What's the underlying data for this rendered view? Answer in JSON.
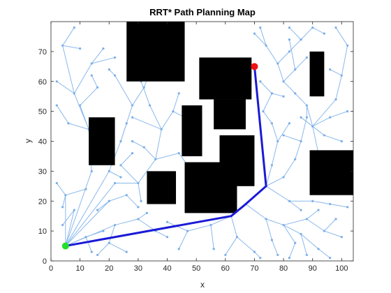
{
  "chart_data": {
    "type": "scatter",
    "title": "RRT* Path Planning Map",
    "xlabel": "x",
    "ylabel": "y",
    "xlim": [
      0,
      104
    ],
    "ylim": [
      0,
      80
    ],
    "xticks": [
      0,
      10,
      20,
      30,
      40,
      50,
      60,
      70,
      80,
      90,
      100
    ],
    "yticks": [
      0,
      10,
      20,
      30,
      40,
      50,
      60,
      70
    ],
    "grid": false,
    "legend": "none",
    "obstacles": [
      {
        "x0": 26,
        "x1": 46,
        "y0": 60,
        "y1": 80
      },
      {
        "x0": 45,
        "x1": 46,
        "y0": 68,
        "y1": 80
      },
      {
        "x0": 51,
        "x1": 69,
        "y0": 54,
        "y1": 68
      },
      {
        "x0": 56,
        "x1": 67,
        "y0": 44,
        "y1": 54
      },
      {
        "x0": 45,
        "x1": 52,
        "y0": 35,
        "y1": 52
      },
      {
        "x0": 58,
        "x1": 70,
        "y0": 25,
        "y1": 42
      },
      {
        "x0": 46,
        "x1": 64,
        "y0": 16,
        "y1": 33
      },
      {
        "x0": 33,
        "x1": 43,
        "y0": 19,
        "y1": 30
      },
      {
        "x0": 13,
        "x1": 22,
        "y0": 32,
        "y1": 48
      },
      {
        "x0": 89,
        "x1": 94,
        "y0": 55,
        "y1": 70
      },
      {
        "x0": 89,
        "x1": 104,
        "y0": 22,
        "y1": 37
      }
    ],
    "path": {
      "x": [
        5,
        62,
        67,
        74,
        70
      ],
      "y": [
        5,
        15,
        19,
        25,
        65
      ]
    },
    "start": {
      "x": 5,
      "y": 5
    },
    "goal": {
      "x": 70,
      "y": 65
    },
    "tree_edges": [
      [
        [
          5,
          5
        ],
        [
          14,
          30
        ]
      ],
      [
        [
          14,
          30
        ],
        [
          13,
          44
        ]
      ],
      [
        [
          13,
          44
        ],
        [
          8,
          56
        ]
      ],
      [
        [
          8,
          56
        ],
        [
          2,
          60
        ]
      ],
      [
        [
          8,
          56
        ],
        [
          4,
          72
        ]
      ],
      [
        [
          4,
          72
        ],
        [
          8,
          78
        ]
      ],
      [
        [
          4,
          72
        ],
        [
          10,
          71
        ]
      ],
      [
        [
          8,
          56
        ],
        [
          14,
          66
        ]
      ],
      [
        [
          14,
          66
        ],
        [
          18,
          71
        ]
      ],
      [
        [
          14,
          66
        ],
        [
          22,
          68
        ]
      ],
      [
        [
          13,
          44
        ],
        [
          6,
          46
        ]
      ],
      [
        [
          6,
          46
        ],
        [
          2,
          52
        ]
      ],
      [
        [
          13,
          44
        ],
        [
          10,
          52
        ]
      ],
      [
        [
          10,
          52
        ],
        [
          16,
          58
        ]
      ],
      [
        [
          16,
          58
        ],
        [
          14,
          62
        ]
      ],
      [
        [
          5,
          5
        ],
        [
          5,
          22
        ]
      ],
      [
        [
          5,
          22
        ],
        [
          2,
          26
        ]
      ],
      [
        [
          5,
          22
        ],
        [
          4,
          18
        ]
      ],
      [
        [
          5,
          22
        ],
        [
          12,
          24
        ]
      ],
      [
        [
          5,
          5
        ],
        [
          8,
          17
        ]
      ],
      [
        [
          8,
          17
        ],
        [
          4,
          12
        ]
      ],
      [
        [
          5,
          5
        ],
        [
          20,
          30
        ]
      ],
      [
        [
          20,
          30
        ],
        [
          24,
          40
        ]
      ],
      [
        [
          24,
          40
        ],
        [
          28,
          52
        ]
      ],
      [
        [
          28,
          52
        ],
        [
          22,
          62
        ]
      ],
      [
        [
          22,
          62
        ],
        [
          20,
          64
        ]
      ],
      [
        [
          28,
          52
        ],
        [
          32,
          58
        ]
      ],
      [
        [
          32,
          58
        ],
        [
          34,
          63
        ]
      ],
      [
        [
          24,
          40
        ],
        [
          26,
          46
        ]
      ],
      [
        [
          20,
          30
        ],
        [
          24,
          28
        ]
      ],
      [
        [
          5,
          5
        ],
        [
          22,
          26
        ]
      ],
      [
        [
          22,
          26
        ],
        [
          30,
          26
        ]
      ],
      [
        [
          30,
          26
        ],
        [
          36,
          34
        ]
      ],
      [
        [
          36,
          34
        ],
        [
          38,
          44
        ]
      ],
      [
        [
          38,
          44
        ],
        [
          34,
          52
        ]
      ],
      [
        [
          34,
          52
        ],
        [
          31,
          60
        ]
      ],
      [
        [
          38,
          44
        ],
        [
          42,
          50
        ]
      ],
      [
        [
          42,
          50
        ],
        [
          44,
          56
        ]
      ],
      [
        [
          42,
          50
        ],
        [
          46,
          48
        ]
      ],
      [
        [
          38,
          44
        ],
        [
          28,
          48
        ]
      ],
      [
        [
          36,
          34
        ],
        [
          44,
          36
        ]
      ],
      [
        [
          44,
          36
        ],
        [
          47,
          32
        ]
      ],
      [
        [
          30,
          26
        ],
        [
          31,
          20
        ]
      ],
      [
        [
          5,
          5
        ],
        [
          20,
          20
        ]
      ],
      [
        [
          20,
          20
        ],
        [
          16,
          17
        ]
      ],
      [
        [
          20,
          20
        ],
        [
          26,
          22
        ]
      ],
      [
        [
          26,
          22
        ],
        [
          30,
          18
        ]
      ],
      [
        [
          5,
          5
        ],
        [
          22,
          12
        ]
      ],
      [
        [
          22,
          12
        ],
        [
          30,
          14
        ]
      ],
      [
        [
          30,
          14
        ],
        [
          36,
          10
        ]
      ],
      [
        [
          36,
          10
        ],
        [
          40,
          8
        ]
      ],
      [
        [
          30,
          14
        ],
        [
          33,
          16
        ]
      ],
      [
        [
          22,
          12
        ],
        [
          20,
          6
        ]
      ],
      [
        [
          20,
          6
        ],
        [
          16,
          2
        ]
      ],
      [
        [
          20,
          6
        ],
        [
          26,
          3
        ]
      ],
      [
        [
          5,
          5
        ],
        [
          12,
          8
        ]
      ],
      [
        [
          12,
          8
        ],
        [
          14,
          3
        ]
      ],
      [
        [
          12,
          8
        ],
        [
          18,
          10
        ]
      ],
      [
        [
          62,
          15
        ],
        [
          55,
          12
        ]
      ],
      [
        [
          55,
          12
        ],
        [
          47,
          10
        ]
      ],
      [
        [
          47,
          10
        ],
        [
          44,
          4
        ]
      ],
      [
        [
          47,
          10
        ],
        [
          40,
          13
        ]
      ],
      [
        [
          55,
          12
        ],
        [
          56,
          4
        ]
      ],
      [
        [
          62,
          15
        ],
        [
          64,
          8
        ]
      ],
      [
        [
          64,
          8
        ],
        [
          60,
          2
        ]
      ],
      [
        [
          64,
          8
        ],
        [
          70,
          3
        ]
      ],
      [
        [
          70,
          3
        ],
        [
          72,
          1
        ]
      ],
      [
        [
          67,
          19
        ],
        [
          74,
          14
        ]
      ],
      [
        [
          74,
          14
        ],
        [
          80,
          12
        ]
      ],
      [
        [
          80,
          12
        ],
        [
          86,
          9
        ]
      ],
      [
        [
          86,
          9
        ],
        [
          88,
          2
        ]
      ],
      [
        [
          86,
          9
        ],
        [
          92,
          4
        ]
      ],
      [
        [
          92,
          4
        ],
        [
          96,
          1
        ]
      ],
      [
        [
          80,
          12
        ],
        [
          84,
          6
        ]
      ],
      [
        [
          84,
          6
        ],
        [
          82,
          1
        ]
      ],
      [
        [
          74,
          14
        ],
        [
          76,
          7
        ]
      ],
      [
        [
          76,
          7
        ],
        [
          78,
          2
        ]
      ],
      [
        [
          80,
          12
        ],
        [
          88,
          14
        ]
      ],
      [
        [
          88,
          14
        ],
        [
          94,
          10
        ]
      ],
      [
        [
          94,
          10
        ],
        [
          100,
          8
        ]
      ],
      [
        [
          94,
          10
        ],
        [
          98,
          14
        ]
      ],
      [
        [
          88,
          14
        ],
        [
          92,
          17
        ]
      ],
      [
        [
          74,
          25
        ],
        [
          82,
          20
        ]
      ],
      [
        [
          82,
          20
        ],
        [
          86,
          17
        ]
      ],
      [
        [
          82,
          20
        ],
        [
          90,
          20
        ]
      ],
      [
        [
          90,
          20
        ],
        [
          96,
          19
        ]
      ],
      [
        [
          96,
          19
        ],
        [
          102,
          18
        ]
      ],
      [
        [
          74,
          25
        ],
        [
          80,
          28
        ]
      ],
      [
        [
          80,
          28
        ],
        [
          84,
          34
        ]
      ],
      [
        [
          84,
          34
        ],
        [
          86,
          40
        ]
      ],
      [
        [
          86,
          40
        ],
        [
          80,
          42
        ]
      ],
      [
        [
          86,
          40
        ],
        [
          88,
          48
        ]
      ],
      [
        [
          88,
          48
        ],
        [
          88,
          52
        ]
      ],
      [
        [
          74,
          25
        ],
        [
          76,
          32
        ]
      ],
      [
        [
          76,
          32
        ],
        [
          78,
          40
        ]
      ],
      [
        [
          78,
          40
        ],
        [
          76,
          46
        ]
      ],
      [
        [
          76,
          46
        ],
        [
          73,
          50
        ]
      ],
      [
        [
          78,
          40
        ],
        [
          82,
          46
        ]
      ],
      [
        [
          90,
          45
        ],
        [
          88,
          52
        ]
      ],
      [
        [
          90,
          45
        ],
        [
          96,
          48
        ]
      ],
      [
        [
          96,
          48
        ],
        [
          102,
          50
        ]
      ],
      [
        [
          90,
          45
        ],
        [
          94,
          42
        ]
      ],
      [
        [
          94,
          42
        ],
        [
          100,
          40
        ]
      ],
      [
        [
          90,
          45
        ],
        [
          86,
          48
        ]
      ],
      [
        [
          90,
          45
        ],
        [
          92,
          36
        ]
      ],
      [
        [
          90,
          45
        ],
        [
          98,
          54
        ]
      ],
      [
        [
          98,
          54
        ],
        [
          100,
          62
        ]
      ],
      [
        [
          100,
          62
        ],
        [
          102,
          72
        ]
      ],
      [
        [
          102,
          72
        ],
        [
          98,
          78
        ]
      ],
      [
        [
          100,
          62
        ],
        [
          96,
          64
        ]
      ],
      [
        [
          88,
          52
        ],
        [
          84,
          56
        ]
      ],
      [
        [
          84,
          56
        ],
        [
          80,
          60
        ]
      ],
      [
        [
          80,
          60
        ],
        [
          78,
          66
        ]
      ],
      [
        [
          78,
          66
        ],
        [
          74,
          72
        ]
      ],
      [
        [
          74,
          72
        ],
        [
          72,
          78
        ]
      ],
      [
        [
          78,
          66
        ],
        [
          82,
          70
        ]
      ],
      [
        [
          82,
          70
        ],
        [
          86,
          74
        ]
      ],
      [
        [
          86,
          74
        ],
        [
          90,
          78
        ]
      ],
      [
        [
          80,
          60
        ],
        [
          84,
          64
        ]
      ],
      [
        [
          84,
          64
        ],
        [
          88,
          68
        ]
      ],
      [
        [
          84,
          64
        ],
        [
          82,
          74
        ]
      ],
      [
        [
          73,
          50
        ],
        [
          76,
          56
        ]
      ],
      [
        [
          76,
          56
        ],
        [
          72,
          60
        ]
      ],
      [
        [
          76,
          56
        ],
        [
          80,
          55
        ]
      ],
      [
        [
          74,
          72
        ],
        [
          70,
          76
        ]
      ],
      [
        [
          86,
          74
        ],
        [
          82,
          78
        ]
      ],
      [
        [
          90,
          78
        ],
        [
          94,
          76
        ]
      ],
      [
        [
          30,
          26
        ],
        [
          24,
          32
        ]
      ],
      [
        [
          24,
          32
        ],
        [
          28,
          36
        ]
      ],
      [
        [
          36,
          34
        ],
        [
          32,
          38
        ]
      ],
      [
        [
          32,
          38
        ],
        [
          28,
          40
        ]
      ]
    ]
  }
}
